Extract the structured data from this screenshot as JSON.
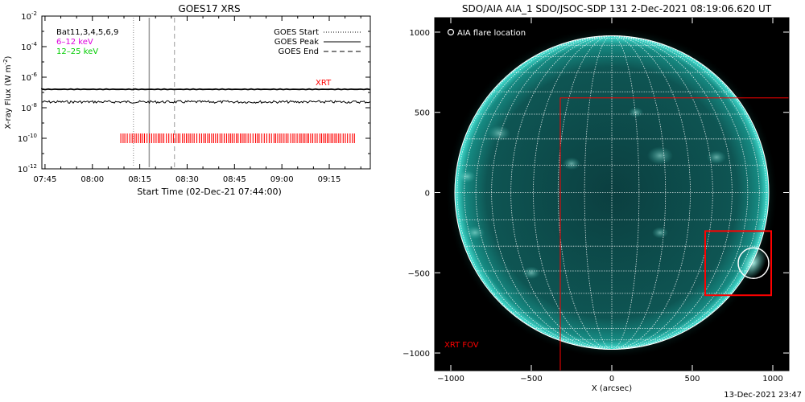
{
  "chart_data": [
    {
      "type": "line",
      "title": "GOES17 XRS",
      "xlabel": "Start Time (02-Dec-21 07:44:00)",
      "ylabel": "X-ray Flux (W m",
      "ylabel_sup": "-2",
      "ylabel_close": ")",
      "yscale": "log",
      "ylim": [
        1e-12,
        0.01
      ],
      "xlim": [
        "07:44",
        "09:28"
      ],
      "x_ticks": [
        "07:45",
        "08:00",
        "08:15",
        "08:30",
        "08:45",
        "09:00",
        "09:15"
      ],
      "y_ticks": [
        {
          "base": "10",
          "exp": "-2",
          "value": 0.01
        },
        {
          "base": "10",
          "exp": "-4",
          "value": 0.0001
        },
        {
          "base": "10",
          "exp": "-6",
          "value": 1e-06
        },
        {
          "base": "10",
          "exp": "-8",
          "value": 1e-08
        },
        {
          "base": "10",
          "exp": "-10",
          "value": 1e-10
        },
        {
          "base": "10",
          "exp": "-12",
          "value": 1e-12
        }
      ],
      "legend_left": [
        {
          "text": "Bat11,3,4,5,6,9",
          "color": "#000000"
        },
        {
          "text": "6–12 keV",
          "color": "#dd00dd"
        },
        {
          "text": "12–25 keV",
          "color": "#00cc00"
        }
      ],
      "legend_right": [
        {
          "text": "GOES Start",
          "style": "dotted"
        },
        {
          "text": "GOES Peak",
          "style": "solid"
        },
        {
          "text": "GOES End",
          "style": "dashed"
        }
      ],
      "series": [
        {
          "name": "upper channel",
          "color": "#000000",
          "level": 1.6e-07
        },
        {
          "name": "lower channel",
          "color": "#000000",
          "level": 2.4e-08
        }
      ],
      "markers": {
        "start": "08:13",
        "peak": "08:18",
        "end": "08:26"
      },
      "xrt_label": "XRT",
      "xrt_label_level": 4e-07,
      "xrt_color": "#ff0000",
      "xrt_obs_range": [
        "08:09",
        "09:23"
      ],
      "xrt_obs_level": 1e-10
    },
    {
      "type": "image",
      "title": "SDO/AIA AIA_1 SDO/JSOC-SDP 131  2-Dec-2021 08:19:06.620 UT",
      "xlabel": "X (arcsec)",
      "ylabel": "",
      "xlim": [
        -1100,
        1100
      ],
      "ylim": [
        -1110,
        1090
      ],
      "x_ticks": [
        -1000,
        -500,
        0,
        500,
        1000
      ],
      "y_ticks": [
        1000,
        500,
        0,
        -500,
        -1000
      ],
      "x_tick_labels": [
        "−1000",
        "−500",
        "0",
        "500",
        "1000"
      ],
      "y_tick_labels": [
        "1000",
        "500",
        "0",
        "−500",
        "−1000"
      ],
      "solar_radius": 975,
      "legend_text": "AIA flare location",
      "flare_location": [
        880,
        -440
      ],
      "flare_circle_radius": 95,
      "xrt_fov_label": "XRT FOV",
      "xrt_fov": {
        "x0": -320,
        "y0": -1110,
        "x1": 1100,
        "y1": 590
      },
      "xrt_zoom_box": {
        "x0": 580,
        "y0": -640,
        "x1": 990,
        "y1": -240
      },
      "xrt_color": "#ff0000",
      "disk_color": "#0f6a66",
      "limb_color": "#3ddfd3"
    }
  ],
  "footer": "13-Dec-2021 23:47"
}
